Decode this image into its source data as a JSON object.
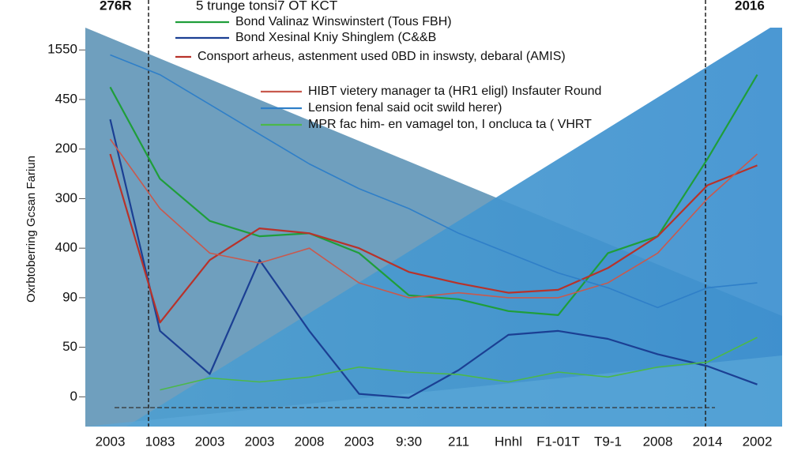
{
  "chart_data": {
    "type": "line",
    "title": "5 trunge tonsi7 OT KCT",
    "corner_labels": [
      "276R",
      "2016"
    ],
    "y_label": "Oxrbtoberring Gcsan Fariun",
    "categories": [
      "2003",
      "1083",
      "2003",
      "2003",
      "2008",
      "2003",
      "9:30",
      "211",
      "Hnhl",
      "F1-01T",
      "T9-1",
      "2008",
      "2014",
      "2002"
    ],
    "ylim": [
      -0.6,
      7.45
    ],
    "yticks": [
      {
        "value": 7,
        "label": "1550"
      },
      {
        "value": 6,
        "label": "450"
      },
      {
        "value": 5,
        "label": "200"
      },
      {
        "value": 4,
        "label": "300"
      },
      {
        "value": 3,
        "label": "400"
      },
      {
        "value": 2,
        "label": "90"
      },
      {
        "value": 1,
        "label": "50"
      },
      0
    ],
    "series": [
      {
        "name": "Bond Valinaz Winswinstert (Tous FBH)",
        "color": "#1f9e3a",
        "values": [
          6.25,
          4.4,
          3.55,
          3.24,
          3.3,
          2.9,
          2.05,
          1.97,
          1.73,
          1.65,
          2.9,
          3.24,
          4.8,
          6.5
        ]
      },
      {
        "name": "Bond Xesinal Kniy Shinglem (C&&B",
        "color": "#1b3f93",
        "values": [
          5.6,
          1.33,
          0.46,
          2.76,
          1.33,
          0.06,
          -0.02,
          0.54,
          1.25,
          1.33,
          1.17,
          0.86,
          0.62,
          0.25
        ]
      },
      {
        "name": "Consport arheus, astenment used 0BD in inswsty, debaral (AMIS)",
        "color": "#b8322a",
        "values": [
          4.9,
          1.5,
          2.76,
          3.4,
          3.3,
          3.0,
          2.52,
          2.29,
          2.1,
          2.16,
          2.6,
          3.24,
          4.27,
          4.67
        ]
      },
      {
        "name": "HIBT vietery manager ta (HR1 eligl) Insfauter Round",
        "color": "#c8594e",
        "values": [
          5.2,
          3.8,
          2.9,
          2.7,
          3.0,
          2.3,
          2.0,
          2.1,
          2.0,
          2.0,
          2.3,
          2.9,
          4.0,
          4.9
        ]
      },
      {
        "name": "Lension fenal said ocit swild herer)",
        "color": "#2f7fc8",
        "values": [
          6.9,
          6.5,
          5.9,
          5.3,
          4.7,
          4.2,
          3.8,
          3.3,
          2.9,
          2.5,
          2.2,
          1.8,
          2.2,
          2.3
        ]
      },
      {
        "name": "MPR fac him- en vamagel ton, I oncluca ta ( VHRT",
        "color": "#4cb84a",
        "values": [
          null,
          0.14,
          0.38,
          0.3,
          0.4,
          0.6,
          0.5,
          0.45,
          0.3,
          0.5,
          0.4,
          0.6,
          0.7,
          1.2
        ]
      }
    ]
  }
}
